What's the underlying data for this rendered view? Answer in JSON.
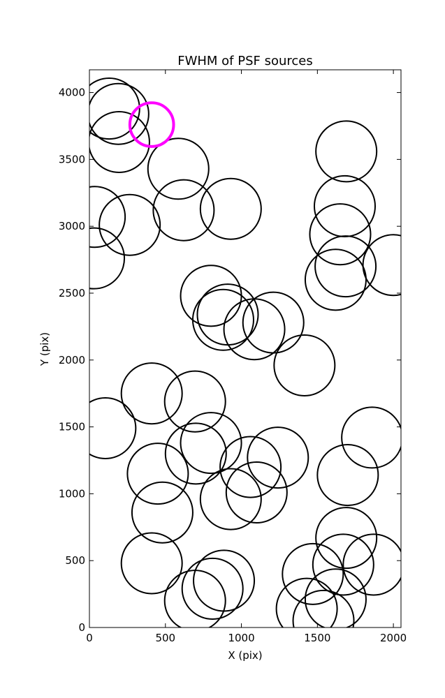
{
  "chart_data": {
    "type": "scatter",
    "title": "FWHM of PSF sources",
    "xlabel": "X (pix)",
    "ylabel": "Y (pix)",
    "xlim": [
      0,
      2050
    ],
    "ylim": [
      0,
      4170
    ],
    "xticks": [
      0,
      500,
      1000,
      1500,
      2000
    ],
    "yticks": [
      0,
      500,
      1000,
      1500,
      2000,
      2500,
      3000,
      3500,
      4000
    ],
    "grid": false,
    "colors": {
      "normal": "#000000",
      "highlight": "#ff00ff"
    },
    "marker_radius_data_units": 200,
    "series": [
      {
        "marker": "circle",
        "x": [
          130,
          190,
          195,
          585,
          620,
          930,
          35,
          265,
          30,
          1690,
          1680,
          1650,
          1620,
          1685,
          2000,
          800,
          910,
          880,
          1085,
          1210,
          1415,
          410,
          695,
          105,
          800,
          700,
          1060,
          1240,
          450,
          930,
          1100,
          480,
          1700,
          1860,
          410,
          1690,
          1870,
          1470,
          1670,
          1620,
          885,
          810,
          695,
          1430,
          1540
        ],
        "y": [
          3880,
          3840,
          3630,
          3430,
          3120,
          3130,
          3070,
          3010,
          2760,
          3560,
          3150,
          2940,
          2600,
          2700,
          2710,
          2480,
          2340,
          2300,
          2230,
          2280,
          1960,
          1750,
          1690,
          1490,
          1380,
          1300,
          1200,
          1270,
          1150,
          960,
          1010,
          860,
          1140,
          1420,
          480,
          670,
          470,
          400,
          470,
          210,
          350,
          290,
          200,
          140,
          50
        ]
      },
      {
        "name": "highlighted",
        "marker": "circle",
        "x": [
          410
        ],
        "y": [
          3760
        ]
      }
    ]
  }
}
